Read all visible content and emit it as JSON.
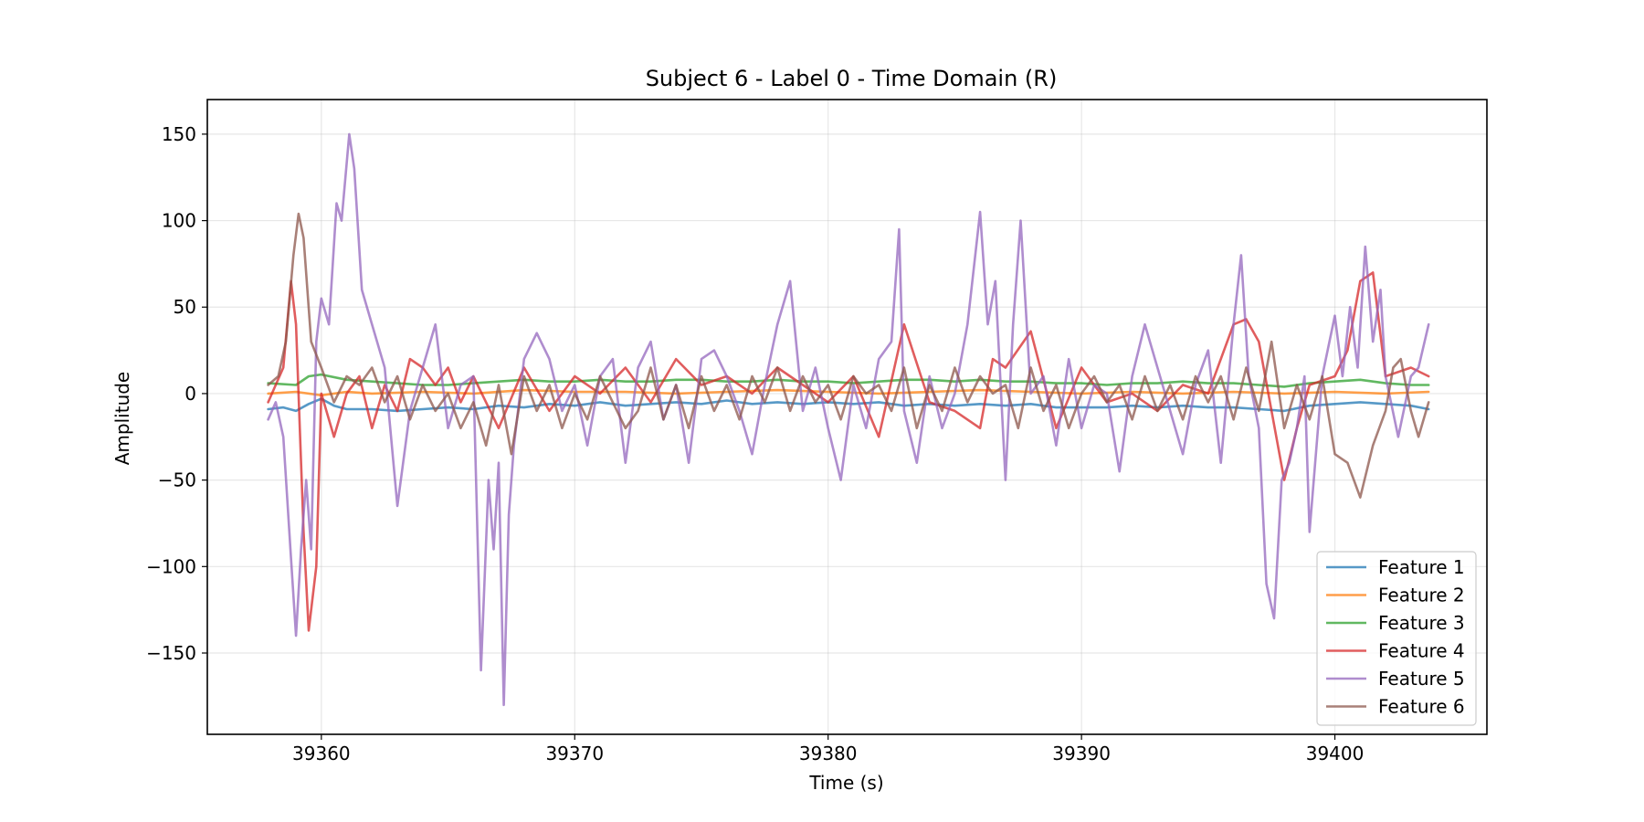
{
  "chart_data": {
    "type": "line",
    "title": "Subject 6 - Label 0 - Time Domain (R)",
    "xlabel": "Time (s)",
    "ylabel": "Amplitude",
    "xlim": [
      39355.5,
      39406
    ],
    "ylim": [
      -197,
      170
    ],
    "xticks": [
      39360,
      39370,
      39380,
      39390,
      39400
    ],
    "yticks": [
      150,
      100,
      50,
      0,
      -50,
      -100,
      -150
    ],
    "ytick_labels": [
      "150",
      "100",
      "50",
      "0",
      "−50",
      "−100",
      "−150"
    ],
    "grid": true,
    "legend_position": "lower-right",
    "series": [
      {
        "name": "Feature 1",
        "color": "#1f77b4",
        "x": [
          39357.9,
          39358.5,
          39359,
          39359.5,
          39360,
          39360.5,
          39361,
          39362,
          39363,
          39364,
          39365,
          39366,
          39367,
          39368,
          39369,
          39370,
          39371,
          39372,
          39373,
          39374,
          39375,
          39376,
          39377,
          39378,
          39379,
          39380,
          39381,
          39382,
          39383,
          39384,
          39385,
          39386,
          39387,
          39388,
          39389,
          39390,
          39391,
          39392,
          39393,
          39394,
          39395,
          39396,
          39397,
          39398,
          39399,
          39400,
          39401,
          39402,
          39403,
          39403.7
        ],
        "values": [
          -9,
          -8,
          -10,
          -6,
          -3,
          -7,
          -9,
          -9,
          -10,
          -9,
          -8,
          -9,
          -7,
          -8,
          -6,
          -7,
          -5,
          -7,
          -6,
          -5,
          -6,
          -4,
          -6,
          -5,
          -6,
          -5,
          -6,
          -5,
          -7,
          -6,
          -7,
          -6,
          -7,
          -6,
          -8,
          -8,
          -8,
          -7,
          -8,
          -7,
          -8,
          -8,
          -9,
          -10,
          -7,
          -6,
          -5,
          -6,
          -7,
          -9
        ]
      },
      {
        "name": "Feature 2",
        "color": "#ff7f0e",
        "x": [
          39357.9,
          39359,
          39360,
          39361,
          39362,
          39364,
          39366,
          39368,
          39370,
          39372,
          39374,
          39376,
          39378,
          39380,
          39382,
          39384,
          39386,
          39388,
          39390,
          39392,
          39394,
          39396,
          39398,
          39400,
          39402,
          39403.7
        ],
        "values": [
          0,
          1,
          -1,
          1,
          0,
          1,
          0,
          2,
          1,
          1,
          0,
          1,
          2,
          1,
          0,
          1,
          2,
          1,
          0,
          1,
          0,
          1,
          0,
          1,
          0,
          1
        ]
      },
      {
        "name": "Feature 3",
        "color": "#2ca02c",
        "x": [
          39357.9,
          39359,
          39359.5,
          39360,
          39361,
          39362,
          39363,
          39364,
          39365,
          39366,
          39367,
          39368,
          39369,
          39370,
          39371,
          39372,
          39373,
          39374,
          39375,
          39376,
          39377,
          39378,
          39379,
          39380,
          39381,
          39382,
          39383,
          39384,
          39385,
          39386,
          39387,
          39388,
          39389,
          39390,
          39391,
          39392,
          39393,
          39394,
          39395,
          39396,
          39397,
          39398,
          39399,
          39400,
          39401,
          39402,
          39403,
          39403.7
        ],
        "values": [
          6,
          5,
          10,
          11,
          8,
          7,
          6,
          5,
          5,
          6,
          7,
          8,
          7,
          7,
          8,
          7,
          7,
          8,
          8,
          7,
          7,
          8,
          7,
          7,
          6,
          7,
          8,
          8,
          7,
          8,
          7,
          7,
          6,
          6,
          5,
          6,
          6,
          7,
          6,
          6,
          5,
          4,
          6,
          7,
          8,
          6,
          5,
          5
        ]
      },
      {
        "name": "Feature 4",
        "color": "#d62728",
        "x": [
          39357.9,
          39358.5,
          39358.8,
          39359,
          39359.3,
          39359.5,
          39359.8,
          39360,
          39360.5,
          39361,
          39361.5,
          39362,
          39362.5,
          39363,
          39363.5,
          39364,
          39364.5,
          39365,
          39365.5,
          39366,
          39367,
          39368,
          39369,
          39370,
          39371,
          39372,
          39373,
          39374,
          39375,
          39376,
          39377,
          39378,
          39379,
          39380,
          39381,
          39382,
          39383,
          39384,
          39385,
          39386,
          39386.5,
          39387,
          39388,
          39389,
          39390,
          39391,
          39392,
          39393,
          39394,
          39395,
          39396,
          39396.5,
          39397,
          39397.5,
          39398,
          39398.5,
          39399,
          39400,
          39400.5,
          39401,
          39401.5,
          39402,
          39403,
          39403.7
        ],
        "values": [
          -5,
          15,
          65,
          40,
          -80,
          -137,
          -100,
          0,
          -25,
          0,
          10,
          -20,
          5,
          -10,
          20,
          15,
          5,
          15,
          -5,
          10,
          -20,
          15,
          -10,
          10,
          0,
          15,
          -5,
          20,
          5,
          10,
          0,
          15,
          5,
          -5,
          10,
          -25,
          40,
          -5,
          -10,
          -20,
          20,
          15,
          36,
          -20,
          15,
          -5,
          0,
          -10,
          5,
          0,
          40,
          43,
          30,
          -10,
          -50,
          -20,
          5,
          10,
          25,
          65,
          70,
          10,
          15,
          10
        ]
      },
      {
        "name": "Feature 5",
        "color": "#9467bd",
        "x": [
          39357.9,
          39358.2,
          39358.5,
          39358.8,
          39359,
          39359.2,
          39359.4,
          39359.6,
          39359.8,
          39360,
          39360.3,
          39360.6,
          39360.8,
          39361.1,
          39361.3,
          39361.6,
          39362,
          39362.5,
          39363,
          39363.5,
          39364,
          39364.5,
          39365,
          39365.5,
          39366,
          39366.3,
          39366.6,
          39366.8,
          39367,
          39367.2,
          39367.4,
          39367.6,
          39368,
          39368.5,
          39369,
          39369.5,
          39370,
          39370.5,
          39371,
          39371.5,
          39372,
          39372.5,
          39373,
          39373.5,
          39374,
          39374.5,
          39375,
          39375.5,
          39376,
          39376.5,
          39377,
          39377.5,
          39378,
          39378.5,
          39379,
          39379.5,
          39380,
          39380.5,
          39381,
          39381.5,
          39382,
          39382.5,
          39382.8,
          39383,
          39383.5,
          39384,
          39384.5,
          39385,
          39385.5,
          39386,
          39386.3,
          39386.6,
          39387,
          39387.3,
          39387.6,
          39388,
          39388.5,
          39389,
          39389.5,
          39390,
          39390.5,
          39391,
          39391.5,
          39392,
          39392.5,
          39393,
          39393.5,
          39394,
          39394.5,
          39395,
          39395.5,
          39396,
          39396.3,
          39396.6,
          39397,
          39397.3,
          39397.6,
          39397.9,
          39398.2,
          39398.5,
          39398.8,
          39399,
          39399.5,
          39400,
          39400.3,
          39400.6,
          39400.9,
          39401.2,
          39401.5,
          39401.8,
          39402,
          39402.5,
          39403,
          39403.3,
          39403.7
        ],
        "values": [
          -15,
          -5,
          -25,
          -95,
          -140,
          -90,
          -50,
          -90,
          30,
          55,
          40,
          110,
          100,
          150,
          130,
          60,
          40,
          15,
          -65,
          -10,
          15,
          40,
          -20,
          5,
          10,
          -160,
          -50,
          -90,
          -40,
          -180,
          -70,
          -30,
          20,
          35,
          20,
          -10,
          5,
          -30,
          10,
          20,
          -40,
          15,
          30,
          -15,
          5,
          -40,
          20,
          25,
          10,
          -10,
          -35,
          5,
          40,
          65,
          -10,
          15,
          -20,
          -50,
          5,
          -20,
          20,
          30,
          95,
          -10,
          -40,
          10,
          -20,
          0,
          40,
          105,
          40,
          65,
          -50,
          40,
          100,
          0,
          10,
          -30,
          20,
          -20,
          5,
          0,
          -45,
          10,
          40,
          15,
          -10,
          -35,
          5,
          25,
          -40,
          40,
          80,
          10,
          -20,
          -110,
          -130,
          -50,
          -40,
          -20,
          10,
          -80,
          10,
          45,
          10,
          50,
          15,
          85,
          30,
          60,
          10,
          -25,
          10,
          15,
          40
        ]
      },
      {
        "name": "Feature 6",
        "color": "#8c564b",
        "x": [
          39357.9,
          39358.3,
          39358.6,
          39358.9,
          39359.1,
          39359.3,
          39359.6,
          39360,
          39360.5,
          39361,
          39361.5,
          39362,
          39362.5,
          39363,
          39363.5,
          39364,
          39364.5,
          39365,
          39365.5,
          39366,
          39366.5,
          39367,
          39367.5,
          39368,
          39368.5,
          39369,
          39369.5,
          39370,
          39370.5,
          39371,
          39371.5,
          39372,
          39372.5,
          39373,
          39373.5,
          39374,
          39374.5,
          39375,
          39375.5,
          39376,
          39376.5,
          39377,
          39377.5,
          39378,
          39378.5,
          39379,
          39379.5,
          39380,
          39380.5,
          39381,
          39381.5,
          39382,
          39382.5,
          39383,
          39383.5,
          39384,
          39384.5,
          39385,
          39385.5,
          39386,
          39386.5,
          39387,
          39387.5,
          39388,
          39388.5,
          39389,
          39389.5,
          39390,
          39390.5,
          39391,
          39391.5,
          39392,
          39392.5,
          39393,
          39393.5,
          39394,
          39394.5,
          39395,
          39395.5,
          39396,
          39396.5,
          39397,
          39397.5,
          39398,
          39398.5,
          39399,
          39399.5,
          39400,
          39400.5,
          39401,
          39401.5,
          39402,
          39402.3,
          39402.6,
          39403,
          39403.3,
          39403.7
        ],
        "values": [
          5,
          10,
          30,
          80,
          104,
          90,
          30,
          15,
          -5,
          10,
          5,
          15,
          -5,
          10,
          -15,
          5,
          -10,
          0,
          -20,
          -5,
          -30,
          5,
          -35,
          10,
          -10,
          5,
          -20,
          0,
          -15,
          10,
          -5,
          -20,
          -10,
          15,
          -15,
          5,
          -20,
          10,
          -10,
          5,
          -15,
          10,
          -5,
          15,
          -10,
          10,
          -5,
          5,
          -15,
          10,
          0,
          5,
          -10,
          15,
          -20,
          5,
          -10,
          15,
          -5,
          10,
          0,
          5,
          -20,
          15,
          -10,
          5,
          -20,
          0,
          10,
          -5,
          5,
          -15,
          10,
          -10,
          5,
          -15,
          10,
          -5,
          10,
          -15,
          15,
          -10,
          30,
          -20,
          5,
          -15,
          10,
          -35,
          -40,
          -60,
          -30,
          -10,
          15,
          20,
          -10,
          -25,
          -5
        ]
      }
    ]
  }
}
